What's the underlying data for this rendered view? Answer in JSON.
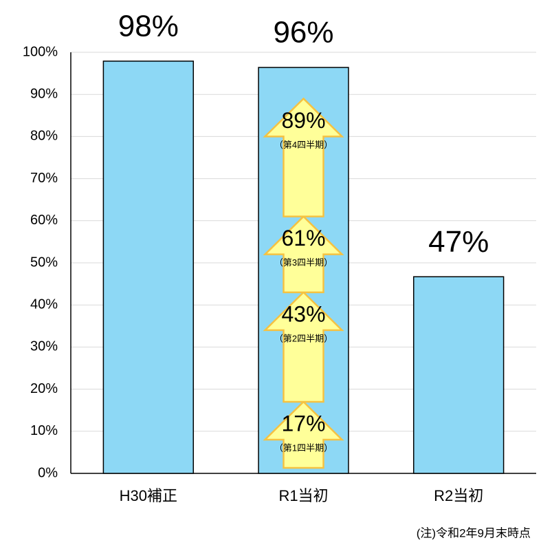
{
  "chart_data": {
    "type": "bar",
    "categories": [
      "H30補正",
      "R1当初",
      "R2当初"
    ],
    "values": [
      97.9,
      96.4,
      46.7
    ],
    "value_labels": [
      "98%",
      "96%",
      "47%"
    ],
    "color": "#8dd8f5",
    "ylim": [
      0,
      100
    ],
    "yticks": [
      {
        "value": 0,
        "label": "0%"
      },
      {
        "value": 10,
        "label": "10%"
      },
      {
        "value": 20,
        "label": "20%"
      },
      {
        "value": 30,
        "label": "30%"
      },
      {
        "value": 40,
        "label": "40%"
      },
      {
        "value": 50,
        "label": "50%"
      },
      {
        "value": 60,
        "label": "60%"
      },
      {
        "value": 70,
        "label": "70%"
      },
      {
        "value": 80,
        "label": "80%"
      },
      {
        "value": 90,
        "label": "90%"
      },
      {
        "value": 100,
        "label": "100%"
      }
    ],
    "grid": true,
    "arrows": [
      {
        "value": 17,
        "label": "17%",
        "sublabel": "（第1四半期）"
      },
      {
        "value": 43,
        "label": "43%",
        "sublabel": "（第2四半期）"
      },
      {
        "value": 61,
        "label": "61%",
        "sublabel": "（第3四半期）"
      },
      {
        "value": 89,
        "label": "89%",
        "sublabel": "（第4四半期）"
      }
    ],
    "arrow_color": "#ffff99",
    "note": "(注)令和2年9月末時点"
  }
}
